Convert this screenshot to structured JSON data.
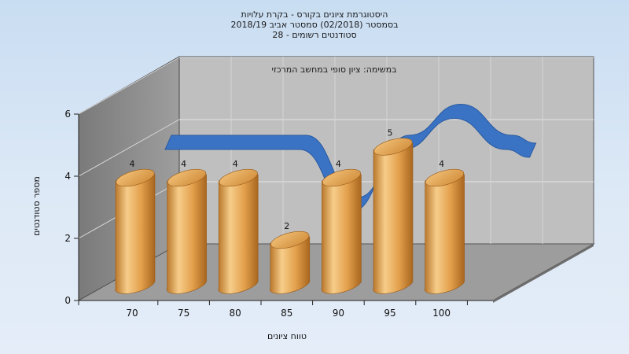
{
  "chart_data": {
    "type": "bar",
    "title_lines": [
      "היסטוגרמת ציונים בקורס - בקרת עלויות",
      "בסמסטר (02/2018) סמסטר אביב 2018/19",
      "סטודנטים רשומים - 28"
    ],
    "annotation": "במשימה: ציון סופי במחשב המרכזי",
    "xlabel": "טווח ציונים",
    "ylabel": "מספר סטודנטים",
    "categories": [
      "70",
      "75",
      "80",
      "85",
      "90",
      "95",
      "100"
    ],
    "values": [
      4,
      4,
      4,
      2,
      4,
      5,
      4
    ],
    "y_ticks": [
      "0",
      "2",
      "4",
      "6"
    ],
    "ylim": [
      0,
      6
    ],
    "grid": true,
    "legend": "none",
    "colors": {
      "bar": "#e3a04c",
      "bar_light": "#f6cd8a",
      "bar_dark": "#b9762a",
      "ribbon": "#3a73c4",
      "back_wall": "#bfbfbf",
      "side_wall": "#8c8c8c",
      "floor": "#9a9a9a"
    }
  }
}
